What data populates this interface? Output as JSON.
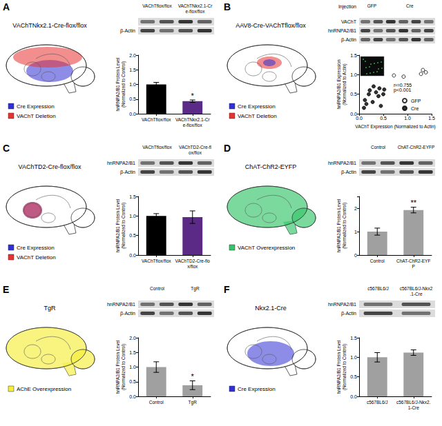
{
  "chart_data": [
    {
      "panel": "A",
      "type": "bar",
      "title": "VAChTNkx2.1-Cre-flox/flox",
      "categories": [
        "VAChTflox/flox",
        "VAChTNkx2.1-Cre-flox/flox"
      ],
      "values": [
        1.0,
        0.43
      ],
      "errors": [
        0.07,
        0.04
      ],
      "colors": [
        "#000000",
        "#5b2a86"
      ],
      "annotations": [
        null,
        "*"
      ],
      "ylabel": "hnRNPA2/B1 Protein Level\n(Normalized to Control)",
      "ylim": [
        0,
        2
      ],
      "yticks": [
        {
          "value": 0,
          "label": "0.0"
        },
        {
          "value": 0.5,
          "label": "0.5"
        },
        {
          "value": 1,
          "label": "1.0"
        },
        {
          "value": 1.5,
          "label": "1.5"
        },
        {
          "value": 2,
          "label": "2.0"
        }
      ],
      "grid": false,
      "blot_columns": [
        "VAChTflox/flox",
        "VAChTNkx2.1-Cre-flox/flox"
      ],
      "blot_rows": [
        null,
        "β-Actin"
      ],
      "diagram_legend": [
        {
          "label": "Cre Expression",
          "color": "#2f2fd6"
        },
        {
          "label": "VAChT Deletion",
          "color": "#e8322f"
        }
      ]
    },
    {
      "panel": "B",
      "type": "scatter",
      "title": "AAV8-Cre-VAChTflox/flox",
      "series": [
        {
          "name": "GFP",
          "color": "#000000",
          "marker": "open",
          "x": [
            0.72,
            0.92,
            1.28,
            1.32,
            1.38
          ],
          "values": [
            0.98,
            0.95,
            1.02,
            1.12,
            1.06
          ]
        },
        {
          "name": "Cre",
          "color": "#000000",
          "marker": "filled",
          "x": [
            0.1,
            0.12,
            0.15,
            0.2,
            0.22,
            0.28,
            0.3,
            0.35,
            0.4,
            0.42,
            0.45,
            0.5,
            0.52
          ],
          "values": [
            0.15,
            0.35,
            0.25,
            0.5,
            0.6,
            0.3,
            0.7,
            0.55,
            0.45,
            0.65,
            0.2,
            0.5,
            0.62
          ]
        }
      ],
      "xlabel": "VAChT Expression (Normalized to Actin)",
      "ylabel": "hnRNPA2/B1 Expression\n(Normalized to Actin)",
      "xlim": [
        0,
        1.5
      ],
      "xticks": [
        {
          "value": 0,
          "label": "0.0"
        },
        {
          "value": 0.5,
          "label": "0.5"
        },
        {
          "value": 1,
          "label": "1.0"
        },
        {
          "value": 1.5,
          "label": "1.5"
        }
      ],
      "ylim": [
        0,
        1.5
      ],
      "yticks": [
        {
          "value": 0,
          "label": "0.0"
        },
        {
          "value": 0.5,
          "label": "0.5"
        },
        {
          "value": 1,
          "label": "1.0"
        },
        {
          "value": 1.5,
          "label": "1.5"
        }
      ],
      "grid": false,
      "annotation": "r²=0.755\np<0.001",
      "legend": "lower right",
      "blot_header": "Injection",
      "blot_columns": [
        "GFP",
        "Cre"
      ],
      "blot_rows": [
        "VAChT",
        "hnRNPA2/B1",
        "β-Actin"
      ],
      "diagram_legend": [
        {
          "label": "Cre Expression",
          "color": "#2f2fd6"
        },
        {
          "label": "VAChT Deletion",
          "color": "#e8322f"
        }
      ]
    },
    {
      "panel": "C",
      "type": "bar",
      "title": "VAChTD2-Cre-flox/flox",
      "categories": [
        "VAChTflox/flox",
        "VAChTD2-Cre-flox/flox"
      ],
      "values": [
        1.0,
        0.97
      ],
      "errors": [
        0.06,
        0.16
      ],
      "colors": [
        "#000000",
        "#5b2a86"
      ],
      "annotations": [
        null,
        null
      ],
      "ylabel": "hnRNPA2/B1 Protein Level\n(Normalized to Control)",
      "ylim": [
        0,
        1.5
      ],
      "yticks": [
        {
          "value": 0,
          "label": "0.0"
        },
        {
          "value": 0.5,
          "label": "0.5"
        },
        {
          "value": 1,
          "label": "1.0"
        },
        {
          "value": 1.5,
          "label": "1.5"
        }
      ],
      "grid": false,
      "blot_columns": [
        "VAChTflox/flox",
        "VAChTD2-Cre-flox/flox"
      ],
      "blot_rows": [
        "hnRNPA2/B1",
        "β-Actin"
      ],
      "diagram_legend": [
        {
          "label": "Cre Expression",
          "color": "#2f2fd6"
        },
        {
          "label": "VAChT Deletion",
          "color": "#e8322f"
        }
      ]
    },
    {
      "panel": "D",
      "type": "bar",
      "title": "ChAT-ChR2-EYFP",
      "categories": [
        "Control",
        "ChAT-ChR2-EYFP"
      ],
      "values": [
        1.0,
        1.92
      ],
      "errors": [
        0.15,
        0.12
      ],
      "colors": [
        "#a0a0a0",
        "#a0a0a0"
      ],
      "annotations": [
        null,
        "**"
      ],
      "ylabel": "hnRNPA2/B1 Protein Level\n(Normalized to Control)",
      "ylim": [
        0,
        2.5
      ],
      "yticks": [
        0,
        1,
        2
      ],
      "grid": false,
      "blot_columns": [
        "Control",
        "ChAT-ChR2-EYFP"
      ],
      "blot_rows": [
        "hnRNPA2/B1",
        "β-Actin"
      ],
      "diagram_legend": [
        {
          "label": "VAChT Overexpression",
          "color": "#35c46a"
        }
      ]
    },
    {
      "panel": "E",
      "type": "bar",
      "title": "TgR",
      "categories": [
        "Control",
        "TgR"
      ],
      "values": [
        1.0,
        0.38
      ],
      "errors": [
        0.18,
        0.15
      ],
      "colors": [
        "#a0a0a0",
        "#a0a0a0"
      ],
      "annotations": [
        null,
        "*"
      ],
      "ylabel": "hnRNPA2/B1 Protein Level\n(Normalized to Control)",
      "ylim": [
        0,
        2
      ],
      "yticks": [
        {
          "value": 0,
          "label": "0.0"
        },
        {
          "value": 0.5,
          "label": "0.5"
        },
        {
          "value": 1,
          "label": "1.0"
        },
        {
          "value": 1.5,
          "label": "1.5"
        },
        {
          "value": 2,
          "label": "2.0"
        }
      ],
      "grid": false,
      "blot_columns": [
        "Control",
        "TgR"
      ],
      "blot_rows": [
        "hnRNPA2/B1",
        "β-Actin"
      ],
      "diagram_legend": [
        {
          "label": "AChE Overexpression",
          "color": "#f5ee3a"
        }
      ]
    },
    {
      "panel": "F",
      "type": "bar",
      "title": "Nkx2.1-Cre",
      "categories": [
        "c567BL6/J",
        "c567BL6/J-Nkx2.1-Cre"
      ],
      "values": [
        1.0,
        1.12
      ],
      "errors": [
        0.12,
        0.07
      ],
      "colors": [
        "#a0a0a0",
        "#a0a0a0"
      ],
      "annotations": [
        null,
        null
      ],
      "ylabel": "hnRNPA2/B1 Protein Level\n(Normalized to Control)",
      "ylim": [
        0,
        1.5
      ],
      "yticks": [
        {
          "value": 0,
          "label": "0.0"
        },
        {
          "value": 0.5,
          "label": "0.5"
        },
        {
          "value": 1,
          "label": "1.0"
        },
        {
          "value": 1.5,
          "label": "1.5"
        }
      ],
      "grid": false,
      "blot_columns": [
        "c567BL6/J",
        "c567BL6/J-Nkx2.1-Cre"
      ],
      "blot_rows": [
        "hnRNPA2/B1",
        "β-Actin"
      ],
      "diagram_legend": [
        {
          "label": "Cre Expression",
          "color": "#2f2fd6"
        }
      ]
    }
  ]
}
